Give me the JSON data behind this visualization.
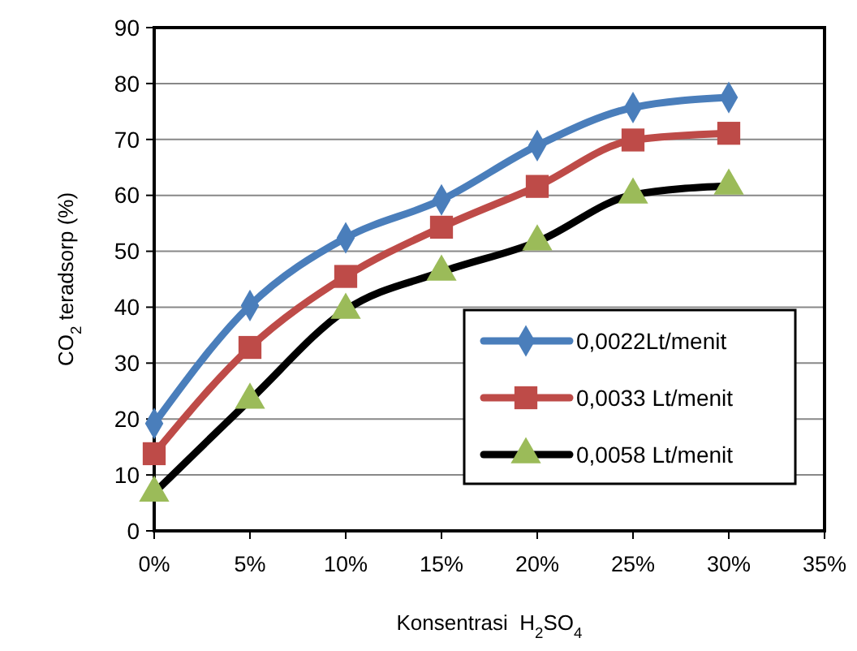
{
  "chart_data": {
    "type": "line",
    "xlabel": "Konsentrasi  H$_{2}$SO$_{4}$",
    "ylabel": "CO$_{2}$ teradsorp (%)",
    "x": [
      0,
      5,
      10,
      15,
      20,
      25,
      30
    ],
    "xlim": [
      0,
      35
    ],
    "xticks": [
      {
        "value": 0,
        "label": "0%"
      },
      {
        "value": 5,
        "label": "5%"
      },
      {
        "value": 10,
        "label": "10%"
      },
      {
        "value": 15,
        "label": "15%"
      },
      {
        "value": 20,
        "label": "20%"
      },
      {
        "value": 25,
        "label": "25%"
      },
      {
        "value": 30,
        "label": "30%"
      },
      {
        "value": 35,
        "label": "35%"
      }
    ],
    "ylim": [
      0,
      90
    ],
    "yticks": [
      0,
      10,
      20,
      30,
      40,
      50,
      60,
      70,
      80,
      90
    ],
    "grid": "y",
    "legend": "right",
    "series": [
      {
        "name": "0,0022Lt/menit",
        "color": "#4a7ebb",
        "marker": "diamond",
        "values": [
          19.2,
          40.3,
          52.4,
          59.2,
          68.9,
          75.7,
          77.5
        ]
      },
      {
        "name": "0,0033 Lt/menit",
        "color": "#be4b48",
        "marker": "square",
        "values": [
          13.8,
          32.8,
          45.5,
          54.3,
          61.6,
          69.9,
          71.1
        ]
      },
      {
        "name": "0,0058 Lt/menit",
        "color": "#000000",
        "colors": [
          "#9bbb59",
          "#9bbb59",
          "#9bbb59",
          "#9bbb59",
          "#9bbb59",
          "#9bbb59",
          "#9bbb59"
        ],
        "marker": "triangle",
        "values": [
          6.8,
          23.4,
          39.5,
          46.3,
          51.7,
          60.1,
          61.7
        ]
      }
    ]
  }
}
